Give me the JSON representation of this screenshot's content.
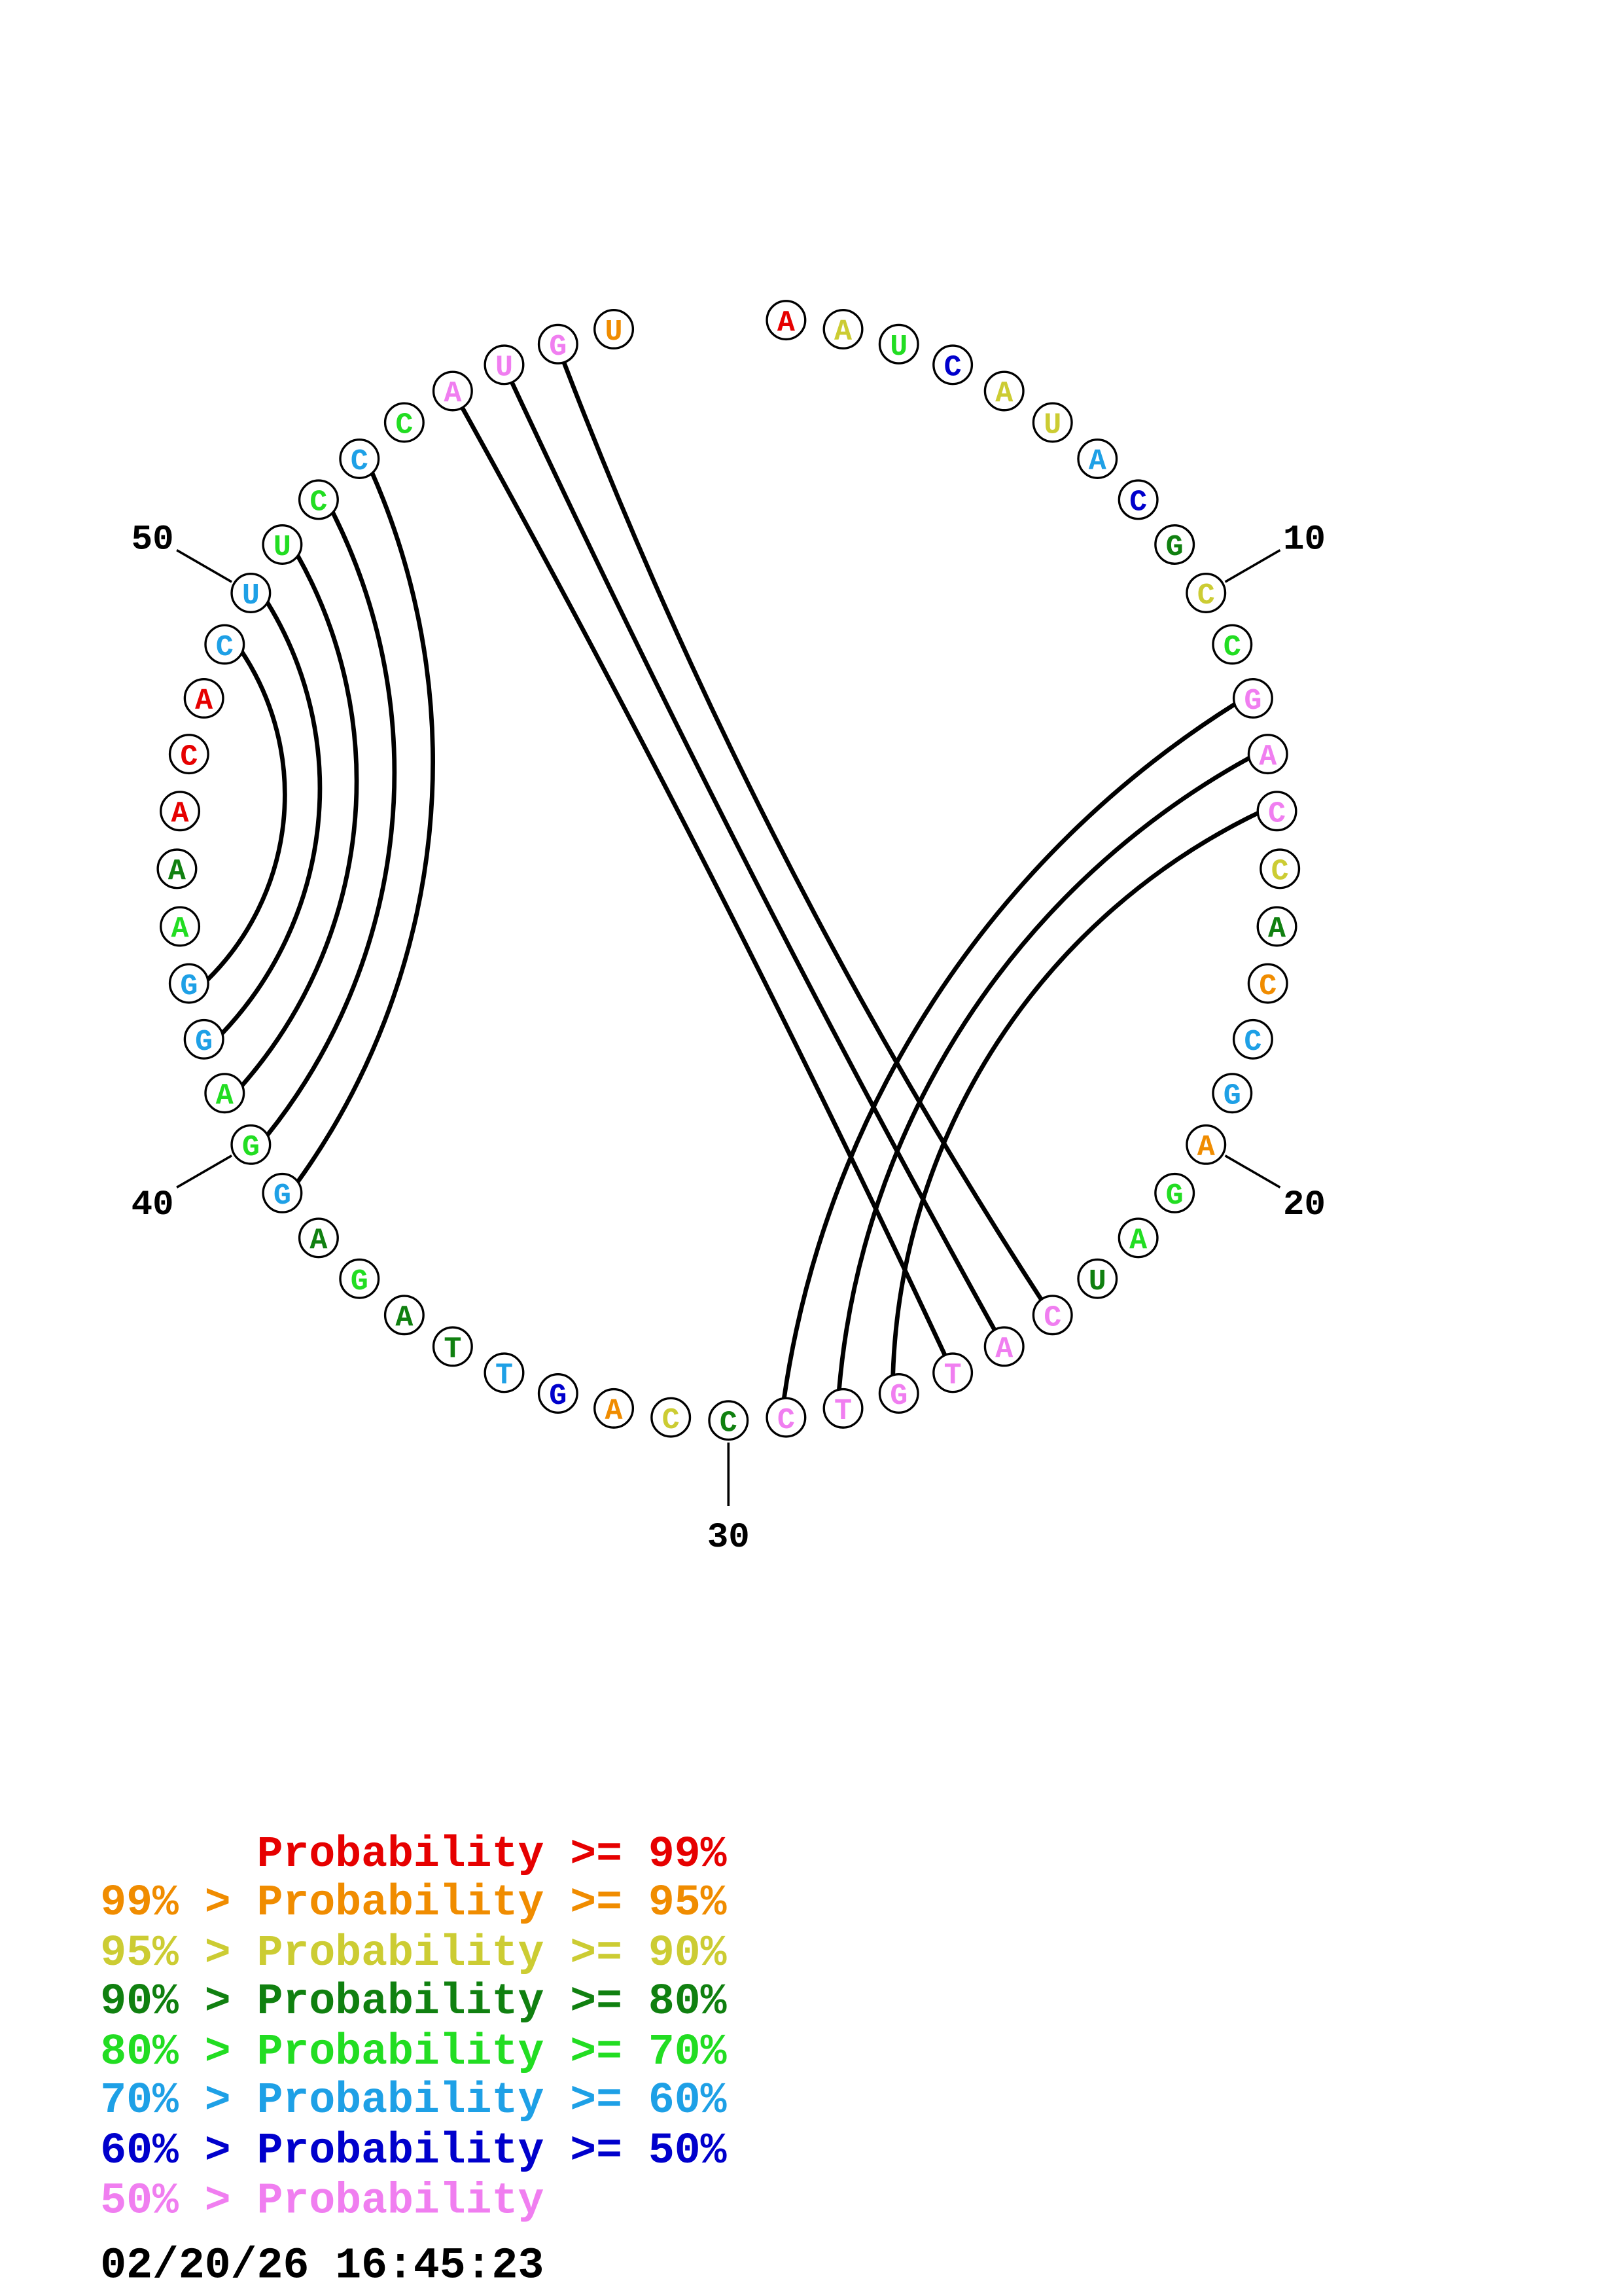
{
  "nucleotides": [
    {
      "base": "A",
      "color": "#e60000"
    },
    {
      "base": "A",
      "color": "#cccc33"
    },
    {
      "base": "U",
      "color": "#22dd22"
    },
    {
      "base": "C",
      "color": "#0000cc"
    },
    {
      "base": "A",
      "color": "#cccc33"
    },
    {
      "base": "U",
      "color": "#cccc33"
    },
    {
      "base": "A",
      "color": "#1ea0e6"
    },
    {
      "base": "C",
      "color": "#0000cc"
    },
    {
      "base": "G",
      "color": "#108010"
    },
    {
      "base": "C",
      "color": "#cccc33"
    },
    {
      "base": "C",
      "color": "#22dd22"
    },
    {
      "base": "G",
      "color": "#f07ef0"
    },
    {
      "base": "A",
      "color": "#f07ef0"
    },
    {
      "base": "C",
      "color": "#f07ef0"
    },
    {
      "base": "C",
      "color": "#cccc33"
    },
    {
      "base": "A",
      "color": "#108010"
    },
    {
      "base": "C",
      "color": "#f08c00"
    },
    {
      "base": "C",
      "color": "#1ea0e6"
    },
    {
      "base": "G",
      "color": "#1ea0e6"
    },
    {
      "base": "A",
      "color": "#f08c00"
    },
    {
      "base": "G",
      "color": "#22dd22"
    },
    {
      "base": "A",
      "color": "#22dd22"
    },
    {
      "base": "U",
      "color": "#108010"
    },
    {
      "base": "C",
      "color": "#f07ef0"
    },
    {
      "base": "A",
      "color": "#f07ef0"
    },
    {
      "base": "T",
      "color": "#f07ef0"
    },
    {
      "base": "G",
      "color": "#f07ef0"
    },
    {
      "base": "T",
      "color": "#f07ef0"
    },
    {
      "base": "C",
      "color": "#f07ef0"
    },
    {
      "base": "C",
      "color": "#108010"
    },
    {
      "base": "C",
      "color": "#cccc33"
    },
    {
      "base": "A",
      "color": "#f08c00"
    },
    {
      "base": "G",
      "color": "#0000cc"
    },
    {
      "base": "T",
      "color": "#1ea0e6"
    },
    {
      "base": "T",
      "color": "#108010"
    },
    {
      "base": "A",
      "color": "#108010"
    },
    {
      "base": "G",
      "color": "#22dd22"
    },
    {
      "base": "A",
      "color": "#108010"
    },
    {
      "base": "G",
      "color": "#1ea0e6"
    },
    {
      "base": "G",
      "color": "#22dd22"
    },
    {
      "base": "A",
      "color": "#22dd22"
    },
    {
      "base": "G",
      "color": "#1ea0e6"
    },
    {
      "base": "G",
      "color": "#1ea0e6"
    },
    {
      "base": "A",
      "color": "#22dd22"
    },
    {
      "base": "A",
      "color": "#108010"
    },
    {
      "base": "A",
      "color": "#e60000"
    },
    {
      "base": "C",
      "color": "#e60000"
    },
    {
      "base": "A",
      "color": "#e60000"
    },
    {
      "base": "C",
      "color": "#1ea0e6"
    },
    {
      "base": "U",
      "color": "#1ea0e6"
    },
    {
      "base": "U",
      "color": "#22dd22"
    },
    {
      "base": "C",
      "color": "#22dd22"
    },
    {
      "base": "C",
      "color": "#1ea0e6"
    },
    {
      "base": "C",
      "color": "#22dd22"
    },
    {
      "base": "A",
      "color": "#f07ef0"
    },
    {
      "base": "U",
      "color": "#f07ef0"
    },
    {
      "base": "G",
      "color": "#f07ef0"
    },
    {
      "base": "U",
      "color": "#f08c00"
    }
  ],
  "pairs": [
    [
      12,
      29
    ],
    [
      13,
      28
    ],
    [
      14,
      27
    ],
    [
      24,
      57
    ],
    [
      25,
      56
    ],
    [
      26,
      55
    ],
    [
      39,
      53
    ],
    [
      40,
      52
    ],
    [
      41,
      51
    ],
    [
      42,
      50
    ],
    [
      43,
      49
    ]
  ],
  "ticks": [
    10,
    20,
    30,
    40,
    50
  ],
  "legend": {
    "items": [
      {
        "text": "Probability >= 99%",
        "color": "#e60000"
      },
      {
        "text": "99% > Probability >= 95%",
        "color": "#f08c00"
      },
      {
        "text": "95% > Probability >= 90%",
        "color": "#cccc33"
      },
      {
        "text": "90% > Probability >= 80%",
        "color": "#108010"
      },
      {
        "text": "80% > Probability >= 70%",
        "color": "#22dd22"
      },
      {
        "text": "70% > Probability >= 60%",
        "color": "#1ea0e6"
      },
      {
        "text": "60% > Probability >= 50%",
        "color": "#0000cc"
      },
      {
        "text": "50% > Probability",
        "color": "#f07ef0"
      }
    ]
  },
  "timestamp": "02/20/26 16:45:23"
}
